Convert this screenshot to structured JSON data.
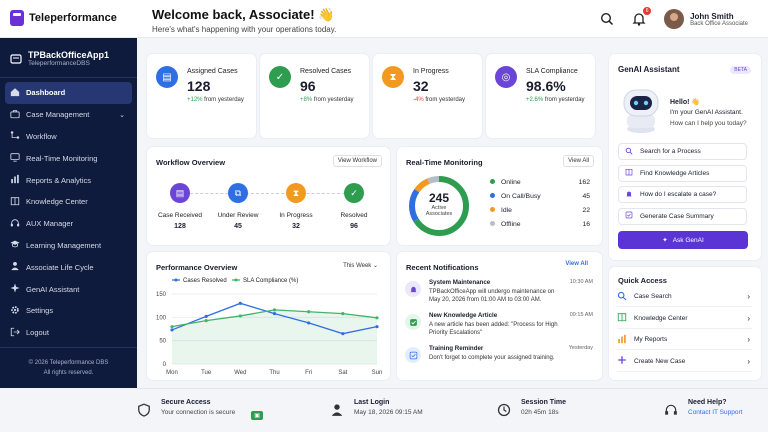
{
  "brand": {
    "name": "Teleperformance",
    "color": "#6b2fd6"
  },
  "header": {
    "welcome": "Welcome back, Associate! 👋",
    "subtitle": "Here's what's happening with your operations today.",
    "notif_count": "6",
    "user_name": "John Smith",
    "user_role": "Back Office Associate"
  },
  "sidebar": {
    "app_name": "TPBackOfficeApp1",
    "app_sub": "TeleperformanceDBS",
    "items": [
      {
        "label": "Dashboard",
        "icon": "home-icon"
      },
      {
        "label": "Case Management",
        "icon": "briefcase-icon"
      },
      {
        "label": "Workflow",
        "icon": "workflow-icon"
      },
      {
        "label": "Real-Time Monitoring",
        "icon": "monitor-icon"
      },
      {
        "label": "Reports & Analytics",
        "icon": "bar-chart-icon"
      },
      {
        "label": "Knowledge Center",
        "icon": "book-icon"
      },
      {
        "label": "AUX Manager",
        "icon": "headset-icon"
      },
      {
        "label": "Learning Management",
        "icon": "graduation-icon"
      },
      {
        "label": "Associate Life Cycle",
        "icon": "person-icon"
      },
      {
        "label": "GenAI Assistant",
        "icon": "sparkle-icon"
      },
      {
        "label": "Settings",
        "icon": "gear-icon"
      },
      {
        "label": "Logout",
        "icon": "logout-icon"
      }
    ],
    "copyright1": "© 2026 Teleperformance DBS",
    "copyright2": "All rights reserved."
  },
  "stats": [
    {
      "label": "Assigned Cases",
      "value": "128",
      "delta": "+12%",
      "delta_text": " from yesterday",
      "color": "#2f6fe4",
      "dcolor": "#2e9d4f"
    },
    {
      "label": "Resolved Cases",
      "value": "96",
      "delta": "+8%",
      "delta_text": " from yesterday",
      "color": "#2e9d4f",
      "dcolor": "#2e9d4f"
    },
    {
      "label": "In Progress",
      "value": "32",
      "delta": "-4%",
      "delta_text": " from yesterday",
      "color": "#f29a1f",
      "dcolor": "#e53935"
    },
    {
      "label": "SLA Compliance",
      "value": "98.6%",
      "delta": "+2.6%",
      "delta_text": " from yesterday",
      "color": "#6a45d8",
      "dcolor": "#2e9d4f"
    }
  ],
  "workflow": {
    "title": "Workflow Overview",
    "button": "View Workflow",
    "steps": [
      {
        "label": "Case Received",
        "value": "128",
        "color": "#6a45d8"
      },
      {
        "label": "Under Review",
        "value": "45",
        "color": "#2f6fe4"
      },
      {
        "label": "In Progress",
        "value": "32",
        "color": "#f29a1f"
      },
      {
        "label": "Resolved",
        "value": "96",
        "color": "#2e9d4f"
      }
    ]
  },
  "realtime": {
    "title": "Real-Time Monitoring",
    "button": "View All",
    "total": "245",
    "total_label1": "Active",
    "total_label2": "Associates",
    "rows": [
      {
        "label": "Online",
        "value": "162",
        "color": "#2e9d4f"
      },
      {
        "label": "On Call/Busy",
        "value": "45",
        "color": "#2f6fe4"
      },
      {
        "label": "Idle",
        "value": "22",
        "color": "#f29a1f"
      },
      {
        "label": "Offline",
        "value": "16",
        "color": "#b7bcc9"
      }
    ]
  },
  "performance": {
    "title": "Performance Overview",
    "period": "This Week"
  },
  "chart_data": {
    "type": "line",
    "categories": [
      "Mon",
      "Tue",
      "Wed",
      "Thu",
      "Fri",
      "Sat",
      "Sun"
    ],
    "series": [
      {
        "name": "Cases Resolved",
        "color": "#2f6fe4",
        "values": [
          73,
          102,
          130,
          108,
          88,
          65,
          80
        ]
      },
      {
        "name": "SLA Compliance (%)",
        "color": "#44b36a",
        "values": [
          80,
          93,
          103,
          116,
          112,
          108,
          99
        ]
      }
    ],
    "ylim": [
      0,
      150
    ],
    "yticks": [
      0,
      50,
      100,
      150
    ],
    "grid": true,
    "legend": "top"
  },
  "notifications": {
    "title": "Recent Notifications",
    "button": "View All",
    "items": [
      {
        "title": "System Maintenance",
        "body": "TPBackOfficeApp will undergo maintenance on May 20, 2026 from 01:00 AM to 03:00 AM.",
        "time": "10:30 AM",
        "icon": "bell-icon",
        "bg": "#ece7fb",
        "fg": "#6a45d8"
      },
      {
        "title": "New Knowledge Article",
        "body": "A new article has been added: \"Process for High Priority Escalations\"",
        "time": "09:15 AM",
        "icon": "check-icon",
        "bg": "#e4f5ea",
        "fg": "#2e9d4f"
      },
      {
        "title": "Training Reminder",
        "body": "Don't forget to complete your assigned training.",
        "time": "Yesterday",
        "icon": "checklist-icon",
        "bg": "#e4edfc",
        "fg": "#2f6fe4"
      }
    ]
  },
  "genai": {
    "title": "GenAI Assistant",
    "beta": "BETA",
    "hello": "Hello! 👋",
    "intro": "I'm your GenAI Assistant.",
    "ask": "How can I help you today?",
    "options": [
      "Search for a Process",
      "Find Knowledge Articles",
      "How do I escalate a case?",
      "Generate Case Summary"
    ],
    "button": "Ask GenAI"
  },
  "quick": {
    "title": "Quick Access",
    "items": [
      {
        "label": "Case Search",
        "icon": "search-icon",
        "color": "#2f6fe4"
      },
      {
        "label": "Knowledge Center",
        "icon": "book-icon",
        "color": "#2e9d4f"
      },
      {
        "label": "My Reports",
        "icon": "bar-chart-icon",
        "color": "#f29a1f"
      },
      {
        "label": "Create New Case",
        "icon": "plus-icon",
        "color": "#6a45d8"
      }
    ]
  },
  "footer": [
    {
      "title": "Secure Access",
      "sub": "Your connection is secure",
      "icon": "shield-icon"
    },
    {
      "title": "Last Login",
      "sub": "May 18, 2026 09:15 AM",
      "icon": "person-icon"
    },
    {
      "title": "Session Time",
      "sub": "02h 45m 18s",
      "icon": "clock-icon"
    },
    {
      "title": "Need Help?",
      "sub": "Contact IT Support",
      "icon": "headset-icon"
    }
  ]
}
